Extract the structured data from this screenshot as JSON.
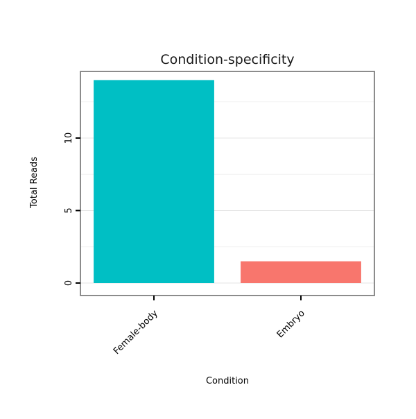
{
  "chart_data": {
    "type": "bar",
    "title": "Condition-specificity",
    "xlabel": "Condition",
    "ylabel": "Total Reads",
    "categories": [
      "Female-body",
      "Embryo"
    ],
    "values": [
      14,
      1.5
    ],
    "bar_colors": [
      "#00BFC4",
      "#F8766D"
    ],
    "yticks": [
      0,
      5,
      10
    ],
    "minor_gridlines": [
      2.5,
      7.5,
      12.5
    ],
    "ylim": [
      -0.9,
      14.6
    ],
    "grid": true,
    "legend_position": "none",
    "panel_border_color": "#8C8C8C",
    "major_grid_color": "#E5E5E5",
    "minor_grid_color": "#F2F2F2",
    "axis_text_color": "#000000",
    "title_color": "#1A1A1A"
  }
}
